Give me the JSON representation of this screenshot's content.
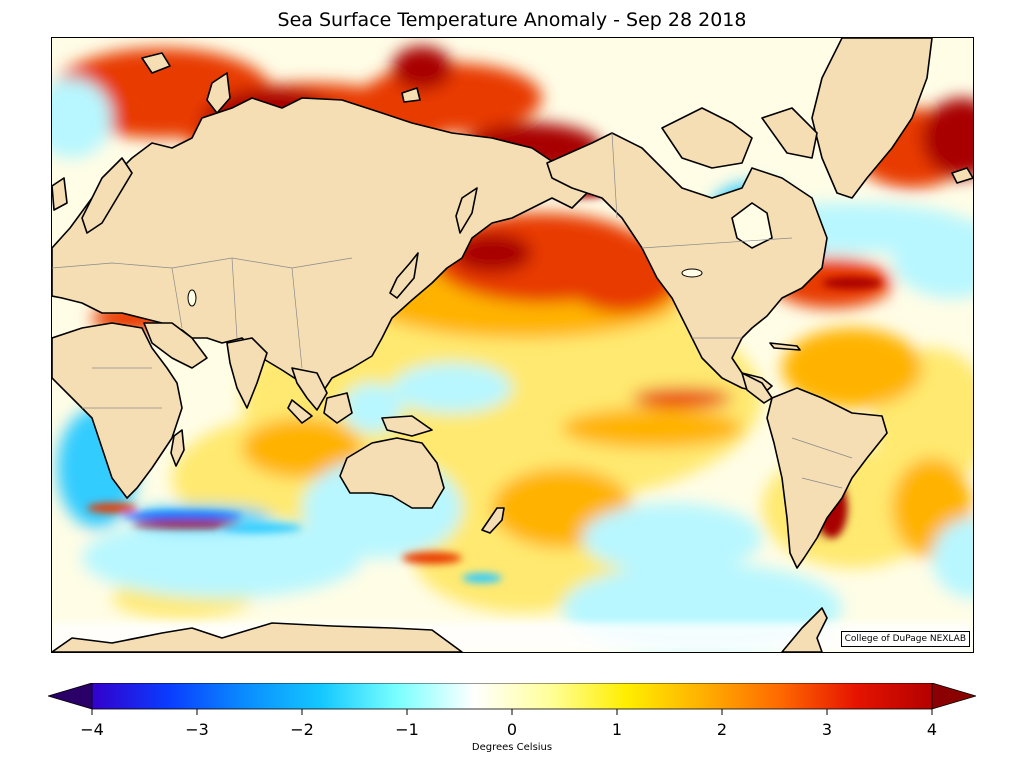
{
  "title": "Sea Surface Temperature Anomaly - Sep 28 2018",
  "credit": "College of DuPage NEXLAB",
  "colorbar": {
    "label": "Degrees Celsius",
    "min": -4,
    "max": 4,
    "ticks": [
      "−4",
      "−3",
      "−2",
      "−1",
      "0",
      "1",
      "2",
      "3",
      "4"
    ],
    "extend": "both",
    "colors": [
      "#2a0068",
      "#3300cc",
      "#0a3cff",
      "#0a8cff",
      "#14c8ff",
      "#7affff",
      "#ffffff",
      "#ffff9a",
      "#ffee00",
      "#ffb000",
      "#ff6a00",
      "#e61400",
      "#b40000",
      "#8b0000"
    ]
  },
  "palette": {
    "land": "#f5deb3",
    "ocean_neutral": "#fffde8",
    "warm_light": "#ffe970",
    "warm_mid": "#ffb300",
    "warm_high": "#e83a00",
    "warm_extreme": "#a80000",
    "cool_light": "#b8f7ff",
    "cool_mid": "#33ccff",
    "cool_high": "#0a6cff",
    "coast": "#000000",
    "border": "#808080"
  }
}
